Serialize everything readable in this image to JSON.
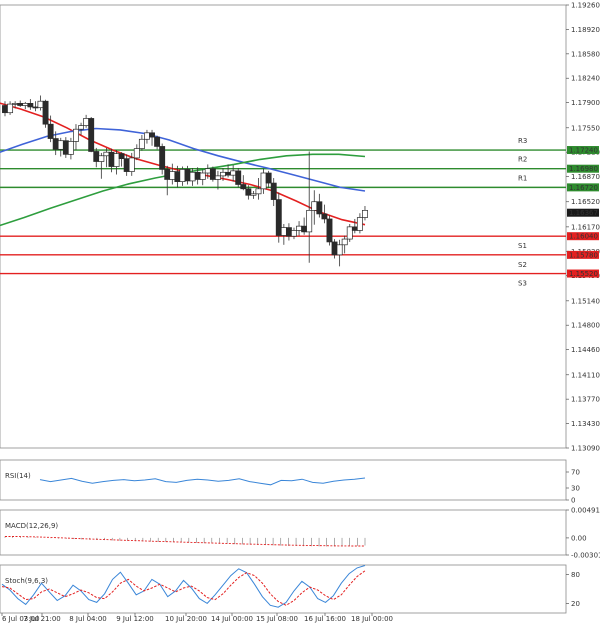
{
  "chart_data": {
    "type": "candlestick",
    "symbol_timeframe": "",
    "price_axis": {
      "min": 1.1309,
      "max": 1.1926,
      "ticks": [
        1.1926,
        1.1892,
        1.1858,
        1.1824,
        1.179,
        1.1755,
        1.1721,
        1.1687,
        1.1652,
        1.1617,
        1.1583,
        1.1549,
        1.1514,
        1.148,
        1.1446,
        1.1411,
        1.1377,
        1.1343,
        1.1309
      ],
      "current_price": "1.16367"
    },
    "x_axis": {
      "labels": [
        "6 Jul 03:00",
        "7 Jul 21:00",
        "8 Jul 04:00",
        "9 Jul 12:00",
        "10 Jul 20:00",
        "14 Jul 00:00",
        "15 Jul 08:00",
        "16 Jul 16:00",
        "18 Jul 00:00"
      ]
    },
    "levels": [
      {
        "name": "R3",
        "price": "1.17240",
        "value": 1.1724,
        "color": "#2e8b2e"
      },
      {
        "name": "R2",
        "price": "1.16980",
        "value": 1.1698,
        "color": "#2e8b2e"
      },
      {
        "name": "R1",
        "price": "1.16720",
        "value": 1.1672,
        "color": "#2e8b2e"
      },
      {
        "name": "S1",
        "price": "1.16040",
        "value": 1.1604,
        "color": "#e32020"
      },
      {
        "name": "S2",
        "price": "1.15780",
        "value": 1.1578,
        "color": "#e32020"
      },
      {
        "name": "S3",
        "price": "1.15520",
        "value": 1.1552,
        "color": "#e32020"
      }
    ],
    "candles": [
      [
        1.1786,
        1.1792,
        1.1771,
        1.1776
      ],
      [
        1.1776,
        1.1792,
        1.1773,
        1.1788
      ],
      [
        1.1788,
        1.1792,
        1.1782,
        1.1789
      ],
      [
        1.1789,
        1.1793,
        1.1784,
        1.1786
      ],
      [
        1.1786,
        1.1791,
        1.1781,
        1.1789
      ],
      [
        1.1789,
        1.1795,
        1.178,
        1.1784
      ],
      [
        1.1784,
        1.1792,
        1.1778,
        1.1783
      ],
      [
        1.1783,
        1.18,
        1.1779,
        1.1792
      ],
      [
        1.1792,
        1.1794,
        1.1755,
        1.176
      ],
      [
        1.176,
        1.1772,
        1.1735,
        1.174
      ],
      [
        1.174,
        1.175,
        1.1717,
        1.1725
      ],
      [
        1.1725,
        1.1741,
        1.1715,
        1.1737
      ],
      [
        1.1737,
        1.1742,
        1.1713,
        1.1718
      ],
      [
        1.1718,
        1.1741,
        1.1711,
        1.1736
      ],
      [
        1.1736,
        1.176,
        1.1724,
        1.1753
      ],
      [
        1.1753,
        1.1762,
        1.1745,
        1.1758
      ],
      [
        1.1758,
        1.1773,
        1.1755,
        1.1768
      ],
      [
        1.1768,
        1.177,
        1.1721,
        1.1722
      ],
      [
        1.1722,
        1.1727,
        1.17,
        1.1708
      ],
      [
        1.1708,
        1.172,
        1.1684,
        1.1716
      ],
      [
        1.1716,
        1.1727,
        1.17,
        1.1721
      ],
      [
        1.1721,
        1.1726,
        1.1693,
        1.1701
      ],
      [
        1.1701,
        1.1724,
        1.169,
        1.1719
      ],
      [
        1.1719,
        1.1721,
        1.1701,
        1.1712
      ],
      [
        1.1712,
        1.1718,
        1.1688,
        1.1694
      ],
      [
        1.1694,
        1.172,
        1.1688,
        1.1713
      ],
      [
        1.1713,
        1.1732,
        1.171,
        1.1726
      ],
      [
        1.1726,
        1.1745,
        1.1723,
        1.1739
      ],
      [
        1.1739,
        1.1752,
        1.1733,
        1.1748
      ],
      [
        1.1748,
        1.1752,
        1.173,
        1.1742
      ],
      [
        1.1742,
        1.1744,
        1.1725,
        1.1729
      ],
      [
        1.1729,
        1.1733,
        1.169,
        1.1697
      ],
      [
        1.1697,
        1.1702,
        1.1661,
        1.1683
      ],
      [
        1.1683,
        1.1705,
        1.1676,
        1.1694
      ],
      [
        1.1694,
        1.1702,
        1.1672,
        1.168
      ],
      [
        1.168,
        1.1701,
        1.1674,
        1.1697
      ],
      [
        1.1697,
        1.1702,
        1.1676,
        1.1681
      ],
      [
        1.1681,
        1.1699,
        1.1674,
        1.1693
      ],
      [
        1.1693,
        1.17,
        1.1676,
        1.1683
      ],
      [
        1.1683,
        1.1697,
        1.1675,
        1.1692
      ],
      [
        1.1692,
        1.1704,
        1.1684,
        1.1698
      ],
      [
        1.1698,
        1.1701,
        1.168,
        1.1683
      ],
      [
        1.1683,
        1.1695,
        1.1669,
        1.1688
      ],
      [
        1.1688,
        1.1699,
        1.1681,
        1.1693
      ],
      [
        1.1693,
        1.1704,
        1.1686,
        1.1689
      ],
      [
        1.1689,
        1.1703,
        1.168,
        1.1695
      ],
      [
        1.1695,
        1.1699,
        1.1672,
        1.1676
      ],
      [
        1.1676,
        1.1689,
        1.1668,
        1.167
      ],
      [
        1.167,
        1.1675,
        1.1655,
        1.1661
      ],
      [
        1.1661,
        1.1667,
        1.1656,
        1.1663
      ],
      [
        1.1663,
        1.1685,
        1.1655,
        1.167
      ],
      [
        1.167,
        1.1698,
        1.1663,
        1.1692
      ],
      [
        1.1692,
        1.1695,
        1.1671,
        1.1678
      ],
      [
        1.1678,
        1.1685,
        1.1646,
        1.1655
      ],
      [
        1.1655,
        1.1665,
        1.1595,
        1.1605
      ],
      [
        1.1605,
        1.1621,
        1.1592,
        1.1616
      ],
      [
        1.1616,
        1.1622,
        1.1598,
        1.1604
      ],
      [
        1.1604,
        1.1616,
        1.16,
        1.1612
      ],
      [
        1.1612,
        1.1625,
        1.1605,
        1.1618
      ],
      [
        1.1618,
        1.163,
        1.1606,
        1.161
      ],
      [
        1.161,
        1.1722,
        1.1567,
        1.164
      ],
      [
        1.164,
        1.1668,
        1.162,
        1.1652
      ],
      [
        1.1652,
        1.1663,
        1.163,
        1.1635
      ],
      [
        1.1635,
        1.1648,
        1.1622,
        1.1628
      ],
      [
        1.1628,
        1.1633,
        1.1591,
        1.1596
      ],
      [
        1.1596,
        1.16,
        1.1573,
        1.1578
      ],
      [
        1.1578,
        1.1599,
        1.1562,
        1.1592
      ],
      [
        1.1592,
        1.1605,
        1.158,
        1.16
      ],
      [
        1.16,
        1.1621,
        1.1596,
        1.1617
      ],
      [
        1.1617,
        1.1628,
        1.1608,
        1.1612
      ],
      [
        1.1612,
        1.1636,
        1.1608,
        1.163
      ],
      [
        1.163,
        1.1646,
        1.1626,
        1.164
      ]
    ],
    "series": [
      {
        "values": [
          1.179,
          1.1781,
          1.177,
          1.1755,
          1.1738,
          1.1724,
          1.1712,
          1.1703,
          1.1695,
          1.1689,
          1.1683,
          1.1676,
          1.1667,
          1.1653,
          1.1638,
          1.1627,
          1.162
        ],
        "color": "#e32020"
      },
      {
        "values": [
          1.172,
          1.1732,
          1.1743,
          1.175,
          1.1754,
          1.1752,
          1.1747,
          1.1738,
          1.1726,
          1.1716,
          1.1707,
          1.1699,
          1.169,
          1.1681,
          1.1672,
          1.1667
        ],
        "color": "#3f63d8"
      },
      {
        "values": [
          1.1618,
          1.163,
          1.1643,
          1.1655,
          1.1667,
          1.1677,
          1.1685,
          1.1692,
          1.1698,
          1.1704,
          1.1711,
          1.1716,
          1.1718,
          1.1718,
          1.1715
        ],
        "color": "#2e9e3e"
      }
    ],
    "indicators": [
      {
        "name": "RSI(14)",
        "ylim": [
          0,
          100
        ],
        "ticks": [
          "70",
          "30",
          "0"
        ],
        "tick_values": [
          70,
          30,
          0
        ],
        "values": [
          51,
          46,
          50,
          54,
          47,
          42,
          46,
          49,
          51,
          48,
          50,
          53,
          46,
          44,
          49,
          52,
          50,
          47,
          49,
          53,
          46,
          42,
          38,
          49,
          48,
          52,
          44,
          42,
          47,
          50,
          52,
          55
        ],
        "color": "#3a86d8"
      },
      {
        "name": "MACD(12,26,9)",
        "ylim": [
          -0.003012,
          0.004916
        ],
        "ticks": [
          "0.004916",
          "0.00",
          "-0.003012"
        ],
        "tick_values": [
          0.004916,
          0,
          -0.003012
        ],
        "histogram": [
          0.00025,
          0.00028,
          0.00025,
          0.0002,
          0.00012,
          2e-05,
          -6e-05,
          -0.00012,
          -0.00018,
          -0.00022,
          -0.00026,
          -0.0003,
          -0.00036,
          -0.0004,
          -0.00045,
          -0.0005,
          -0.00055,
          -0.0006,
          -0.00063,
          -0.00066,
          -0.0007,
          -0.00073,
          -0.00076,
          -0.00079,
          -0.00083,
          -0.00087,
          -0.00092,
          -0.00097,
          -0.00102,
          -0.00106,
          -0.0011,
          -0.00115,
          -0.0012,
          -0.00124,
          -0.00128,
          -0.00132,
          -0.00136,
          -0.0014,
          -0.00143,
          -0.00146,
          -0.00148,
          -0.0015,
          -0.00151,
          -0.00152,
          -0.0015,
          -0.00146,
          -0.0014,
          -0.00134
        ],
        "signal": [
          0.00024,
          0.00024,
          0.0002,
          0.00012,
          3e-05,
          -7e-05,
          -0.00016,
          -0.00025,
          -0.00034,
          -0.00042,
          -0.0005,
          -0.00058,
          -0.00066,
          -0.00073,
          -0.0008,
          -0.00086,
          -0.00093,
          -0.001,
          -0.00107,
          -0.00113,
          -0.00119,
          -0.00125,
          -0.0013,
          -0.00134,
          -0.00138,
          -0.0014,
          -0.00142,
          -0.00142
        ],
        "color": "#e32020"
      },
      {
        "name": "Stoch(9,6,3)",
        "ylim": [
          0,
          100
        ],
        "ticks": [
          "80",
          "20"
        ],
        "tick_values": [
          80,
          20
        ],
        "k_values": [
          60,
          48,
          30,
          18,
          38,
          62,
          44,
          26,
          36,
          58,
          46,
          28,
          22,
          40,
          70,
          85,
          62,
          38,
          46,
          70,
          60,
          34,
          46,
          68,
          52,
          30,
          20,
          38,
          58,
          78,
          92,
          84,
          60,
          34,
          16,
          12,
          22,
          46,
          66,
          54,
          30,
          22,
          36,
          62,
          82,
          94,
          99
        ],
        "d_values": [
          55,
          52,
          40,
          28,
          30,
          44,
          50,
          42,
          34,
          40,
          48,
          42,
          32,
          30,
          44,
          62,
          70,
          56,
          46,
          52,
          60,
          52,
          44,
          52,
          56,
          46,
          32,
          28,
          40,
          58,
          74,
          84,
          78,
          62,
          40,
          24,
          16,
          26,
          42,
          54,
          48,
          36,
          28,
          38,
          58,
          76,
          88
        ],
        "k_color": "#3a86d8",
        "d_color": "#e32020"
      }
    ]
  }
}
